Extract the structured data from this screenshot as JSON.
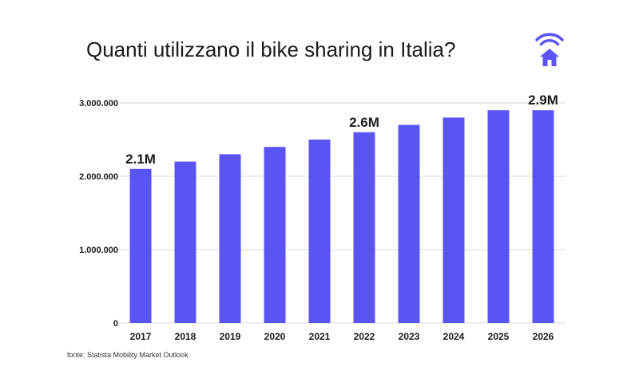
{
  "title": "Quanti utilizzano il bike sharing in Italia?",
  "source": "fonte: Statista Mobility Market Outlook",
  "logo_icon": "wifi-house-icon",
  "colors": {
    "bar": "#5b54f5",
    "grid": "#d9d9d9",
    "text": "#1a1a1a"
  },
  "chart_data": {
    "type": "bar",
    "categories": [
      "2017",
      "2018",
      "2019",
      "2020",
      "2021",
      "2022",
      "2023",
      "2024",
      "2025",
      "2026"
    ],
    "values": [
      2100000,
      2200000,
      2300000,
      2400000,
      2500000,
      2600000,
      2700000,
      2800000,
      2900000,
      2900000
    ],
    "ylim": [
      0,
      3000000
    ],
    "yticks": [
      0,
      1000000,
      2000000,
      3000000
    ],
    "ytick_labels": [
      "0",
      "1.000.000",
      "2.000.000",
      "3.000.000"
    ],
    "data_labels": [
      {
        "index": 0,
        "text": "2.1M"
      },
      {
        "index": 5,
        "text": "2.6M"
      },
      {
        "index": 9,
        "text": "2.9M"
      }
    ],
    "grid": true,
    "legend": "none"
  }
}
